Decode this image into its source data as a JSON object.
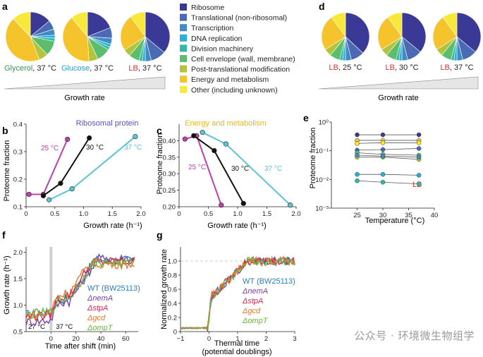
{
  "categories": [
    {
      "name": "Ribosome",
      "color": "#3a3a96"
    },
    {
      "name": "Translational (non-ribosomal)",
      "color": "#4c6ab4"
    },
    {
      "name": "Transcription",
      "color": "#3f8bc8"
    },
    {
      "name": "DNA replication",
      "color": "#29b0d6"
    },
    {
      "name": "Division machinery",
      "color": "#33b8a4"
    },
    {
      "name": "Cell envelope (wall, membrane)",
      "color": "#5cbd6c"
    },
    {
      "name": "Post-translational modification",
      "color": "#b3c43c"
    },
    {
      "name": "Energy and metabolism",
      "color": "#f5c42c"
    },
    {
      "name": "Other (including unknown)",
      "color": "#f7e839"
    }
  ],
  "panels": {
    "a": "a",
    "b": "b",
    "c": "c",
    "d": "d",
    "e": "e",
    "f": "f",
    "g": "g"
  },
  "chart_data": [
    {
      "id": "a",
      "type": "pie",
      "xlabel": "Growth rate",
      "pies": [
        {
          "medium": "Glycerol",
          "temp": ", 37 °C",
          "medium_color": "#2a9d4a",
          "values": [
            0.14,
            0.06,
            0.04,
            0.02,
            0.02,
            0.1,
            0.06,
            0.44,
            0.12
          ]
        },
        {
          "medium": "Glucose",
          "temp": ", 37 °C",
          "medium_color": "#2a9ed6",
          "values": [
            0.19,
            0.07,
            0.04,
            0.02,
            0.02,
            0.09,
            0.06,
            0.4,
            0.11
          ]
        },
        {
          "medium": "LB",
          "temp": ", 37 °C",
          "medium_color": "#e03030",
          "values": [
            0.36,
            0.1,
            0.04,
            0.02,
            0.02,
            0.07,
            0.05,
            0.24,
            0.1
          ]
        }
      ]
    },
    {
      "id": "d",
      "type": "pie",
      "xlabel": "Growth rate",
      "pies": [
        {
          "medium": "LB",
          "temp": ", 25 °C",
          "medium_color": "#e03030",
          "values": [
            0.37,
            0.09,
            0.04,
            0.02,
            0.02,
            0.07,
            0.05,
            0.24,
            0.1
          ]
        },
        {
          "medium": "LB",
          "temp": ", 30 °C",
          "medium_color": "#e03030",
          "values": [
            0.36,
            0.1,
            0.04,
            0.02,
            0.02,
            0.07,
            0.05,
            0.24,
            0.1
          ]
        },
        {
          "medium": "LB",
          "temp": ", 37 °C",
          "medium_color": "#e03030",
          "values": [
            0.36,
            0.1,
            0.04,
            0.02,
            0.02,
            0.07,
            0.05,
            0.24,
            0.1
          ]
        }
      ]
    },
    {
      "id": "b",
      "type": "line",
      "title": "Ribosomal protein",
      "title_color": "#5a4fc8",
      "xlabel": "Growth rate (h⁻¹)",
      "ylabel": "Proteome fraction",
      "xlim": [
        0,
        2.0
      ],
      "ylim": [
        0.1,
        0.4
      ],
      "xticks": [
        0,
        0.5,
        1.0,
        1.5,
        2.0
      ],
      "xtick_labels": [
        "0",
        "0.5",
        "1.0",
        "1.5",
        "2.0"
      ],
      "yticks": [
        0.1,
        0.2,
        0.3,
        0.4
      ],
      "ytick_labels": [
        "0.1",
        "0.2",
        "0.3",
        "0.4"
      ],
      "series": [
        {
          "name": "25 °C",
          "color": "#c03fa8",
          "x": [
            0.05,
            0.3,
            0.72
          ],
          "y": [
            0.145,
            0.145,
            0.345
          ]
        },
        {
          "name": "30 °C",
          "color": "#111111",
          "x": [
            0.3,
            0.6,
            1.1
          ],
          "y": [
            0.14,
            0.185,
            0.35
          ]
        },
        {
          "name": "37 °C",
          "color": "#5cc4d4",
          "x": [
            0.4,
            0.8,
            1.9
          ],
          "y": [
            0.125,
            0.165,
            0.355
          ]
        }
      ]
    },
    {
      "id": "c",
      "type": "line",
      "title": "Energy and metabolism",
      "title_color": "#e8b820",
      "xlabel": "Growth rate (h⁻¹)",
      "ylabel": "Proteome fraction",
      "xlim": [
        0,
        2.0
      ],
      "ylim": [
        0.2,
        0.45
      ],
      "xticks": [
        0,
        0.5,
        1.0,
        1.5,
        2.0
      ],
      "xtick_labels": [
        "0",
        "0.5",
        "1.0",
        "1.5",
        "2.0"
      ],
      "yticks": [
        0.2,
        0.25,
        0.3,
        0.35,
        0.4
      ],
      "ytick_labels": [
        "0.20",
        "0.25",
        "0.30",
        "0.35",
        "0.40"
      ],
      "series": [
        {
          "name": "25 °C",
          "color": "#c03fa8",
          "x": [
            0.1,
            0.3,
            0.72
          ],
          "y": [
            0.405,
            0.415,
            0.205
          ]
        },
        {
          "name": "30 °C",
          "color": "#111111",
          "x": [
            0.25,
            0.6,
            1.1
          ],
          "y": [
            0.415,
            0.37,
            0.21
          ]
        },
        {
          "name": "37 °C",
          "color": "#5cc4d4",
          "x": [
            0.4,
            0.8,
            1.9
          ],
          "y": [
            0.425,
            0.39,
            0.205
          ]
        }
      ]
    },
    {
      "id": "e",
      "type": "line",
      "yscale": "log",
      "xlabel": "Temperature (°C)",
      "ylabel": "Proteome fraction",
      "annotation": "LB",
      "annotation_color": "#e03030",
      "xlim": [
        20,
        40
      ],
      "ylim_exp": [
        -3,
        0
      ],
      "xticks": [
        25,
        30,
        35,
        40
      ],
      "xtick_labels": [
        "25",
        "30",
        "35",
        "40"
      ],
      "ytick_labels": [
        "10⁻³",
        "10⁻²",
        "10⁻¹",
        "10⁰"
      ],
      "x": [
        25,
        30,
        37
      ],
      "series": [
        {
          "name": "Ribosome",
          "color": "#3a3a96",
          "y": [
            0.36,
            0.36,
            0.36
          ]
        },
        {
          "name": "Energy and metabolism",
          "color": "#f5c42c",
          "y": [
            0.23,
            0.23,
            0.23
          ]
        },
        {
          "name": "Translational (non-ribosomal)",
          "color": "#4c6ab4",
          "y": [
            0.105,
            0.11,
            0.12
          ]
        },
        {
          "name": "Other (including unknown)",
          "color": "#f7e839",
          "y": [
            0.18,
            0.19,
            0.19
          ]
        },
        {
          "name": "Cell envelope (wall, membrane)",
          "color": "#5cbd6c",
          "y": [
            0.085,
            0.075,
            0.07
          ]
        },
        {
          "name": "Post-translational modification",
          "color": "#b3c43c",
          "y": [
            0.06,
            0.06,
            0.05
          ]
        },
        {
          "name": "Transcription",
          "color": "#3f8bc8",
          "y": [
            0.07,
            0.065,
            0.06
          ]
        },
        {
          "name": "DNA replication",
          "color": "#29b0d6",
          "y": [
            0.015,
            0.015,
            0.014
          ]
        },
        {
          "name": "Division machinery",
          "color": "#33b8a4",
          "y": [
            0.009,
            0.008,
            0.007
          ]
        }
      ]
    },
    {
      "id": "f",
      "type": "line",
      "xlabel": "Time after shift (min)",
      "ylabel": "Growth rate (h⁻¹)",
      "xlim": [
        -20,
        70
      ],
      "ylim": [
        0.5,
        2.1
      ],
      "xticks": [
        0,
        20,
        40,
        60
      ],
      "xtick_labels": [
        "0",
        "20",
        "40",
        "60"
      ],
      "yticks": [
        0.5,
        1.0,
        1.5,
        2.0
      ],
      "ytick_labels": [
        "0.5",
        "1.0",
        "1.5",
        "2.0"
      ],
      "region_labels": [
        "27 °C",
        "37 °C"
      ],
      "series": [
        {
          "name": "WT (BW25113)",
          "color": "#2a7fc0",
          "before": 0.82,
          "jump": 1.1,
          "final": 1.85
        },
        {
          "name": "ΔnemA",
          "color": "#7a3fa8",
          "before": 0.68,
          "jump": 1.05,
          "final": 1.88
        },
        {
          "name": "ΔstpA",
          "color": "#e02050",
          "before": 0.78,
          "jump": 1.15,
          "final": 1.82
        },
        {
          "name": "Δgcd",
          "color": "#e87a2a",
          "before": 0.8,
          "jump": 1.2,
          "final": 1.78
        },
        {
          "name": "ΔompT",
          "color": "#6ab43c",
          "before": 0.82,
          "jump": 1.1,
          "final": 1.8
        }
      ]
    },
    {
      "id": "g",
      "type": "line",
      "xlabel": "Thermal time",
      "xlabel2": "(potential doublings)",
      "ylabel": "Normalized growth rate",
      "xlim": [
        -1,
        3
      ],
      "ylim": [
        0,
        1.2
      ],
      "xticks": [
        -1,
        0,
        1,
        2,
        3
      ],
      "xtick_labels": [
        "−1",
        "0",
        "1",
        "2",
        "3"
      ],
      "yticks": [
        0,
        0.2,
        0.4,
        0.6,
        0.8,
        1.0
      ],
      "ytick_labels": [
        "0",
        "0.2",
        "0.4",
        "0.6",
        "0.8",
        "1.0"
      ],
      "series": [
        {
          "name": "WT (BW25113)",
          "color": "#2a7fc0"
        },
        {
          "name": "ΔnemA",
          "color": "#7a3fa8"
        },
        {
          "name": "ΔstpA",
          "color": "#e02050"
        },
        {
          "name": "Δgcd",
          "color": "#e87a2a"
        },
        {
          "name": "ΔompT",
          "color": "#6ab43c"
        }
      ]
    }
  ],
  "watermark": "公众号 · 环境微生物组学"
}
